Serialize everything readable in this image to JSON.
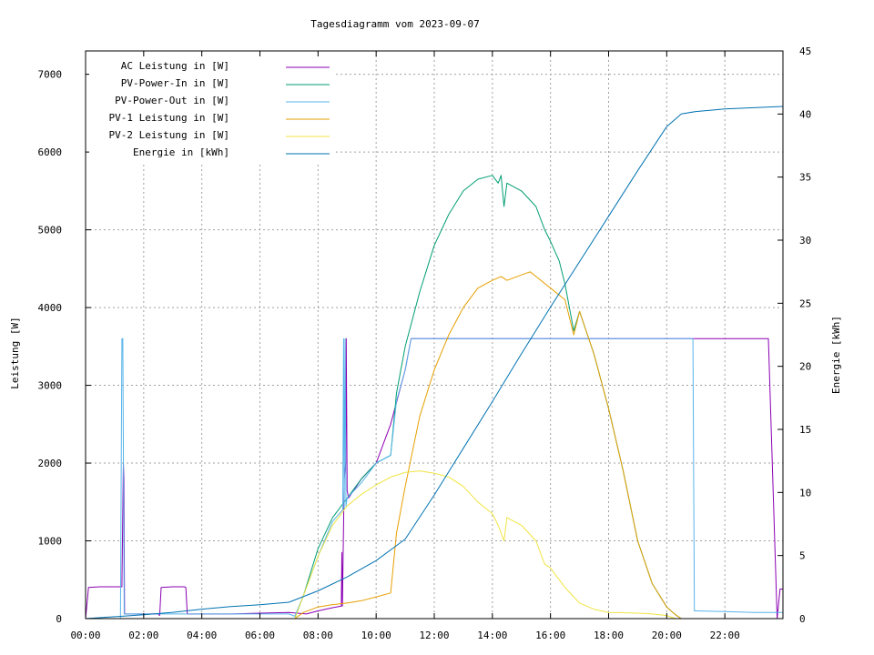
{
  "chart_data": {
    "type": "line",
    "title": "Tagesdiagramm vom 2023-09-07",
    "ylabel": "Leistung [W]",
    "y2label": "Energie [kWh]",
    "xlabel": "",
    "xlim": [
      0,
      24
    ],
    "ylim": [
      0,
      7300
    ],
    "y2lim": [
      0,
      45
    ],
    "x_ticks": [
      "00:00",
      "02:00",
      "04:00",
      "06:00",
      "08:00",
      "10:00",
      "12:00",
      "14:00",
      "16:00",
      "18:00",
      "20:00",
      "22:00"
    ],
    "y_ticks": [
      0,
      1000,
      2000,
      3000,
      4000,
      5000,
      6000,
      7000
    ],
    "y2_ticks": [
      0,
      5,
      10,
      15,
      20,
      25,
      30,
      35,
      40,
      45
    ],
    "grid": true,
    "legend_position": "top-left",
    "x_unit": "hours since 00:00",
    "series": [
      {
        "name": "AC Leistung in [W]",
        "color": "#8b00b3",
        "axis": "left",
        "x": [
          0.0,
          0.1,
          0.5,
          1.0,
          1.25,
          1.3,
          1.32,
          1.34,
          1.4,
          2.0,
          2.5,
          2.55,
          2.6,
          3.0,
          3.4,
          3.45,
          3.5,
          4.0,
          5.0,
          6.0,
          7.0,
          7.6,
          8.0,
          8.5,
          8.8,
          8.82,
          8.84,
          8.9,
          8.95,
          8.97,
          9.0,
          9.05,
          9.5,
          10.0,
          10.5,
          11.0,
          11.2,
          12.0,
          13.0,
          14.0,
          15.0,
          16.0,
          17.0,
          18.0,
          19.0,
          20.0,
          20.3,
          20.35,
          20.4,
          20.5,
          20.6,
          21.0,
          22.0,
          23.5,
          23.8,
          23.9,
          24.0
        ],
        "y": [
          0,
          400,
          410,
          410,
          410,
          2000,
          1800,
          60,
          60,
          60,
          60,
          40,
          400,
          410,
          410,
          400,
          60,
          60,
          60,
          70,
          80,
          60,
          100,
          140,
          160,
          850,
          160,
          1800,
          2000,
          3600,
          1650,
          1550,
          1800,
          2000,
          2500,
          3200,
          3600,
          3600,
          3600,
          3600,
          3600,
          3600,
          3600,
          3600,
          3600,
          3600,
          3600,
          3600,
          3600,
          3600,
          3600,
          3600,
          3600,
          3600,
          0,
          380,
          380
        ]
      },
      {
        "name": "PV-Power-In in [W]",
        "color": "#009e73",
        "axis": "left",
        "x": [
          0.0,
          6.5,
          7.2,
          7.5,
          8.0,
          8.5,
          9.0,
          9.5,
          10.0,
          10.5,
          10.7,
          11.0,
          11.5,
          12.0,
          12.5,
          13.0,
          13.5,
          14.0,
          14.2,
          14.3,
          14.4,
          14.5,
          15.0,
          15.5,
          15.8,
          16.0,
          16.3,
          16.5,
          16.8,
          17.0,
          17.5,
          18.0,
          18.5,
          19.0,
          19.5,
          20.0,
          20.3,
          20.5,
          24.0
        ],
        "y": [
          0,
          0,
          0,
          300,
          900,
          1300,
          1550,
          1800,
          2000,
          2100,
          2900,
          3500,
          4200,
          4800,
          5200,
          5500,
          5650,
          5700,
          5600,
          5700,
          5300,
          5600,
          5500,
          5300,
          5000,
          4850,
          4600,
          4300,
          3700,
          3950,
          3400,
          2700,
          1900,
          1000,
          450,
          150,
          50,
          0,
          0
        ]
      },
      {
        "name": "PV-Power-Out in [W]",
        "color": "#56b4e9",
        "axis": "left",
        "x": [
          0.0,
          1.2,
          1.25,
          1.28,
          1.33,
          1.5,
          2.5,
          3.0,
          4.0,
          5.0,
          6.0,
          6.5,
          7.0,
          7.2,
          7.5,
          8.0,
          8.5,
          8.85,
          8.88,
          8.9,
          8.93,
          8.96,
          9.0,
          9.5,
          10.0,
          10.5,
          10.7,
          11.0,
          11.2,
          12.0,
          13.0,
          14.0,
          15.0,
          16.0,
          17.0,
          18.0,
          19.0,
          20.0,
          20.5,
          20.9,
          20.95,
          21.0,
          22.0,
          23.0,
          24.0
        ],
        "y": [
          0,
          0,
          3600,
          3600,
          60,
          60,
          60,
          60,
          60,
          60,
          60,
          60,
          60,
          30,
          300,
          800,
          1250,
          1400,
          3600,
          1400,
          3600,
          1450,
          1550,
          1750,
          2000,
          2100,
          2800,
          3200,
          3600,
          3600,
          3600,
          3600,
          3600,
          3600,
          3600,
          3600,
          3600,
          3600,
          3600,
          3600,
          100,
          100,
          90,
          80,
          80
        ]
      },
      {
        "name": "PV-1 Leistung in [W]",
        "color": "#e69f00",
        "axis": "left",
        "x": [
          0.0,
          7.2,
          7.5,
          8.0,
          8.5,
          9.0,
          9.5,
          10.0,
          10.5,
          10.7,
          11.0,
          11.5,
          12.0,
          12.5,
          13.0,
          13.5,
          14.0,
          14.3,
          14.5,
          15.0,
          15.3,
          15.5,
          16.0,
          16.5,
          16.8,
          17.0,
          17.5,
          18.0,
          18.5,
          19.0,
          19.5,
          20.0,
          20.3,
          20.5,
          24.0
        ],
        "y": [
          0,
          0,
          80,
          150,
          180,
          200,
          230,
          280,
          330,
          1100,
          1700,
          2600,
          3200,
          3650,
          4000,
          4250,
          4350,
          4400,
          4350,
          4420,
          4460,
          4400,
          4250,
          4100,
          3650,
          3950,
          3400,
          2700,
          1900,
          1000,
          450,
          150,
          50,
          0,
          0
        ]
      },
      {
        "name": "PV-2 Leistung in [W]",
        "color": "#f0e442",
        "axis": "left",
        "x": [
          0.0,
          7.2,
          7.5,
          8.0,
          8.5,
          9.0,
          9.5,
          10.0,
          10.5,
          11.0,
          11.5,
          12.0,
          12.5,
          13.0,
          13.5,
          14.0,
          14.2,
          14.4,
          14.5,
          15.0,
          15.5,
          15.8,
          16.0,
          16.5,
          17.0,
          17.5,
          18.0,
          19.0,
          19.5,
          20.0,
          20.3,
          24.0
        ],
        "y": [
          0,
          0,
          300,
          800,
          1200,
          1450,
          1600,
          1720,
          1820,
          1880,
          1900,
          1870,
          1820,
          1700,
          1500,
          1350,
          1200,
          1000,
          1300,
          1200,
          1000,
          700,
          650,
          400,
          200,
          120,
          80,
          70,
          60,
          40,
          0,
          0
        ]
      },
      {
        "name": "Energie in [kWh]",
        "color": "#0072b2",
        "axis": "right",
        "x": [
          0.0,
          1.0,
          2.0,
          3.0,
          4.0,
          5.0,
          6.0,
          7.0,
          8.0,
          9.0,
          10.0,
          11.0,
          12.0,
          13.0,
          14.0,
          15.0,
          16.0,
          17.0,
          18.0,
          19.0,
          20.0,
          20.5,
          21.0,
          22.0,
          23.0,
          24.0
        ],
        "y": [
          0,
          0.15,
          0.3,
          0.5,
          0.75,
          0.95,
          1.1,
          1.3,
          2.2,
          3.3,
          4.6,
          6.3,
          9.8,
          13.5,
          17.2,
          21.0,
          24.7,
          28.3,
          31.9,
          35.5,
          39.0,
          40.0,
          40.2,
          40.4,
          40.5,
          40.6
        ]
      }
    ]
  }
}
